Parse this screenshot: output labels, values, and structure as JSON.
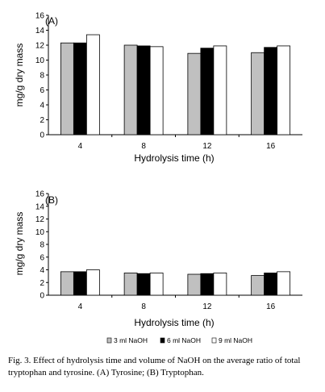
{
  "chart_data": [
    {
      "type": "bar",
      "panel_label": "(A)",
      "categories": [
        "4",
        "8",
        "12",
        "16"
      ],
      "series": [
        {
          "name": "3 ml NaOH",
          "values": [
            12.3,
            12.0,
            10.9,
            11.0
          ]
        },
        {
          "name": "6 ml NaOH",
          "values": [
            12.3,
            11.9,
            11.6,
            11.7
          ]
        },
        {
          "name": "9 ml NaOH",
          "values": [
            13.4,
            11.8,
            11.9,
            11.9
          ]
        }
      ],
      "xlabel": "Hydrolysis time (h)",
      "ylabel": "mg/g dry mass",
      "ylim": [
        0,
        16
      ],
      "yticks": [
        "0",
        "2",
        "4",
        "6",
        "8",
        "10",
        "12",
        "14",
        "16"
      ],
      "grid": false
    },
    {
      "type": "bar",
      "panel_label": "(B)",
      "categories": [
        "4",
        "8",
        "12",
        "16"
      ],
      "series": [
        {
          "name": "3 ml NaOH",
          "values": [
            3.7,
            3.5,
            3.3,
            3.1
          ]
        },
        {
          "name": "6 ml NaOH",
          "values": [
            3.7,
            3.4,
            3.4,
            3.5
          ]
        },
        {
          "name": "9 ml NaOH",
          "values": [
            4.0,
            3.5,
            3.5,
            3.7
          ]
        }
      ],
      "xlabel": "Hydrolysis time (h)",
      "ylabel": "mg/g dry mass",
      "ylim": [
        0,
        16
      ],
      "yticks": [
        "0",
        "2",
        "4",
        "6",
        "8",
        "10",
        "12",
        "14",
        "16"
      ],
      "grid": false
    }
  ],
  "legend": {
    "position": "bottom",
    "items": [
      {
        "label": "3 ml NaOH",
        "color": "#c0c0c0"
      },
      {
        "label": "6 ml NaOH",
        "color": "#000000"
      },
      {
        "label": "9 ml NaOH",
        "color": "#ffffff"
      }
    ]
  },
  "caption": "Fig. 3. Effect of hydrolysis time and volume of NaOH on the average ratio of total tryptophan and tyrosine. (A) Tyrosine; (B) Tryptophan."
}
